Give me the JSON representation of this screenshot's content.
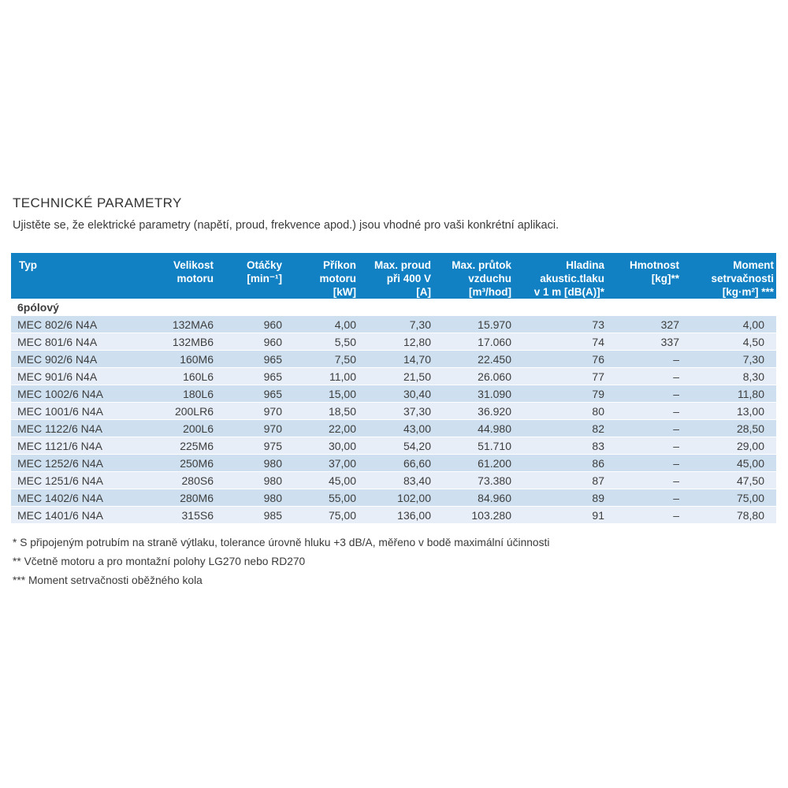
{
  "page": {
    "title": "TECHNICKÉ PARAMETRY",
    "subtitle": "Ujistěte se, že elektrické parametry (napětí, proud, frekvence apod.) jsou vhodné pro vaši konkrétní aplikaci."
  },
  "colors": {
    "header_bg": "#1181C4",
    "row_stripe_dark": "#CEE0F0",
    "row_stripe_light": "#E7EEF8",
    "text": "#3A3A3A"
  },
  "table": {
    "headers": [
      {
        "label": "Typ"
      },
      {
        "label": "Velikost\nmotoru"
      },
      {
        "label": "Otáčky\n[min⁻¹]"
      },
      {
        "label": "Příkon\nmotoru\n[kW]"
      },
      {
        "label": "Max. proud\npři 400 V\n[A]"
      },
      {
        "label": "Max. průtok\nvzduchu\n[m³/hod]"
      },
      {
        "label": "Hladina\nakustic.tlaku\nv 1 m [dB(A)]*"
      },
      {
        "label": "Hmotnost\n[kg]**"
      },
      {
        "label": "Moment\nsetrvačnosti\n[kg·m²] ***"
      }
    ],
    "section_label": "6pólový",
    "rows": [
      [
        "MEC 802/6 N4A",
        "132MA6",
        "960",
        "4,00",
        "7,30",
        "15.970",
        "73",
        "327",
        "4,00"
      ],
      [
        "MEC 801/6 N4A",
        "132MB6",
        "960",
        "5,50",
        "12,80",
        "17.060",
        "74",
        "337",
        "4,50"
      ],
      [
        "MEC 902/6 N4A",
        "160M6",
        "965",
        "7,50",
        "14,70",
        "22.450",
        "76",
        "–",
        "7,30"
      ],
      [
        "MEC 901/6 N4A",
        "160L6",
        "965",
        "11,00",
        "21,50",
        "26.060",
        "77",
        "–",
        "8,30"
      ],
      [
        "MEC 1002/6 N4A",
        "180L6",
        "965",
        "15,00",
        "30,40",
        "31.090",
        "79",
        "–",
        "11,80"
      ],
      [
        "MEC 1001/6 N4A",
        "200LR6",
        "970",
        "18,50",
        "37,30",
        "36.920",
        "80",
        "–",
        "13,00"
      ],
      [
        "MEC 1122/6 N4A",
        "200L6",
        "970",
        "22,00",
        "43,00",
        "44.980",
        "82",
        "–",
        "28,50"
      ],
      [
        "MEC 1121/6 N4A",
        "225M6",
        "975",
        "30,00",
        "54,20",
        "51.710",
        "83",
        "–",
        "29,00"
      ],
      [
        "MEC 1252/6 N4A",
        "250M6",
        "980",
        "37,00",
        "66,60",
        "61.200",
        "86",
        "–",
        "45,00"
      ],
      [
        "MEC 1251/6 N4A",
        "280S6",
        "980",
        "45,00",
        "83,40",
        "73.380",
        "87",
        "–",
        "47,50"
      ],
      [
        "MEC 1402/6 N4A",
        "280M6",
        "980",
        "55,00",
        "102,00",
        "84.960",
        "89",
        "–",
        "75,00"
      ],
      [
        "MEC 1401/6 N4A",
        "315S6",
        "985",
        "75,00",
        "136,00",
        "103.280",
        "91",
        "–",
        "78,80"
      ]
    ]
  },
  "footnotes": [
    "* S připojeným potrubím na straně výtlaku, tolerance úrovně hluku +3 dB/A, měřeno v bodě maximální účinnosti",
    "** Včetně motoru a pro montažní polohy LG270 nebo RD270",
    "*** Moment setrvačnosti oběžného kola"
  ]
}
